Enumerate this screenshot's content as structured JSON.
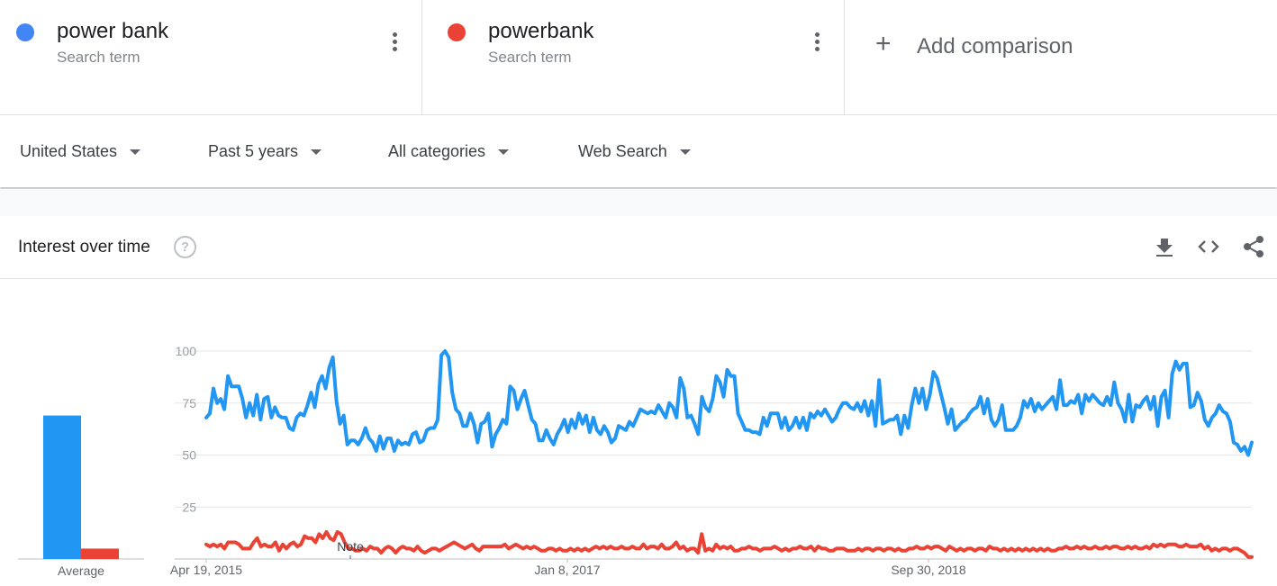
{
  "search_terms": [
    {
      "name": "power bank",
      "subtitle": "Search term",
      "color": "#4285f4"
    },
    {
      "name": "powerbank",
      "subtitle": "Search term",
      "color": "#ea4335"
    }
  ],
  "add_comparison": {
    "icon": "plus-icon",
    "label": "Add comparison"
  },
  "filters": {
    "region": "United States",
    "time_range": "Past 5 years",
    "category": "All categories",
    "search_type": "Web Search"
  },
  "widget": {
    "title": "Interest over time",
    "icons": [
      "help-icon",
      "download-icon",
      "embed-icon",
      "share-icon"
    ]
  },
  "chart_data": {
    "type": "line",
    "x_ticks": [
      "Apr 19, 2015",
      "Jan 8, 2017",
      "Sep 30, 2018"
    ],
    "y_ticks": [
      25,
      50,
      75,
      100
    ],
    "ylim": [
      0,
      100
    ],
    "grid": true,
    "annotation": "Note",
    "average": {
      "label": "Average",
      "values": [
        69,
        5
      ]
    },
    "series": [
      {
        "name": "power bank",
        "color": "#2196f3",
        "values": [
          68,
          70,
          82,
          75,
          77,
          72,
          88,
          83,
          83,
          83,
          77,
          68,
          75,
          69,
          79,
          67,
          77,
          78,
          68,
          73,
          69,
          68,
          68,
          63,
          62,
          68,
          70,
          69,
          74,
          80,
          73,
          84,
          88,
          82,
          92,
          97,
          76,
          65,
          69,
          55,
          57,
          57,
          55,
          58,
          63,
          58,
          56,
          52,
          59,
          53,
          58,
          58,
          52,
          57,
          55,
          56,
          55,
          60,
          61,
          56,
          57,
          62,
          63,
          63,
          67,
          98,
          100,
          97,
          80,
          72,
          70,
          64,
          64,
          70,
          65,
          56,
          65,
          66,
          70,
          54,
          60,
          63,
          67,
          65,
          83,
          81,
          72,
          77,
          81,
          74,
          67,
          65,
          57,
          57,
          62,
          58,
          55,
          60,
          63,
          67,
          61,
          67,
          63,
          70,
          65,
          69,
          61,
          68,
          62,
          60,
          64,
          61,
          56,
          58,
          64,
          63,
          62,
          66,
          64,
          68,
          72,
          71,
          70,
          71,
          70,
          74,
          71,
          68,
          75,
          73,
          68,
          87,
          82,
          68,
          69,
          65,
          60,
          78,
          73,
          71,
          77,
          88,
          85,
          78,
          91,
          88,
          88,
          70,
          66,
          62,
          62,
          61,
          61,
          60,
          68,
          64,
          70,
          70,
          70,
          63,
          68,
          62,
          64,
          68,
          63,
          68,
          62,
          70,
          68,
          71,
          69,
          72,
          69,
          66,
          68,
          72,
          75,
          75,
          73,
          72,
          75,
          71,
          76,
          69,
          76,
          64,
          86,
          65,
          66,
          67,
          67,
          69,
          60,
          69,
          63,
          74,
          82,
          75,
          82,
          72,
          79,
          90,
          87,
          80,
          73,
          65,
          72,
          62,
          64,
          66,
          67,
          70,
          72,
          73,
          78,
          70,
          77,
          67,
          64,
          67,
          74,
          62,
          62,
          62,
          64,
          68,
          76,
          73,
          77,
          71,
          75,
          72,
          74,
          76,
          78,
          72,
          86,
          74,
          74,
          76,
          75,
          79,
          70,
          79,
          76,
          79,
          77,
          75,
          74,
          78,
          74,
          85,
          75,
          72,
          66,
          79,
          66,
          74,
          73,
          76,
          78,
          72,
          78,
          64,
          78,
          81,
          68,
          89,
          95,
          91,
          94,
          94,
          73,
          74,
          80,
          76,
          67,
          64,
          68,
          70,
          74,
          71,
          70,
          66,
          56,
          55,
          52,
          54,
          50,
          56
        ]
      },
      {
        "name": "powerbank",
        "color": "#ea4335",
        "values": [
          7,
          6,
          7,
          6,
          7,
          5,
          8,
          8,
          8,
          7,
          5,
          5,
          5,
          8,
          10,
          6,
          7,
          6,
          6,
          8,
          4,
          7,
          5,
          7,
          8,
          6,
          7,
          11,
          10,
          10,
          8,
          12,
          10,
          13,
          10,
          9,
          13,
          12,
          8,
          5,
          5,
          4,
          4,
          5,
          4,
          6,
          5,
          5,
          3,
          5,
          6,
          5,
          3,
          5,
          6,
          5,
          5,
          4,
          6,
          4,
          3,
          4,
          5,
          5,
          4,
          5,
          6,
          7,
          8,
          7,
          6,
          5,
          6,
          7,
          5,
          4,
          6,
          6,
          6,
          6,
          6,
          6,
          7,
          5,
          6,
          7,
          6,
          5,
          6,
          5,
          6,
          5,
          4,
          4,
          5,
          5,
          4,
          5,
          4,
          4,
          5,
          4,
          5,
          4,
          5,
          4,
          5,
          6,
          5,
          6,
          5,
          6,
          5,
          5,
          6,
          5,
          5,
          6,
          5,
          5,
          7,
          5,
          6,
          6,
          5,
          7,
          5,
          5,
          6,
          8,
          5,
          6,
          4,
          5,
          5,
          3,
          12,
          4,
          5,
          4,
          7,
          5,
          6,
          5,
          6,
          4,
          4,
          5,
          5,
          6,
          5,
          5,
          4,
          5,
          5,
          5,
          6,
          5,
          4,
          5,
          4,
          5,
          5,
          6,
          5,
          5,
          6,
          4,
          6,
          5,
          5,
          4,
          4,
          5,
          5,
          5,
          4,
          4,
          4,
          5,
          4,
          5,
          5,
          4,
          5,
          5,
          4,
          5,
          5,
          4,
          5,
          4,
          4,
          5,
          5,
          6,
          5,
          5,
          6,
          5,
          6,
          6,
          5,
          4,
          6,
          5,
          4,
          5,
          4,
          5,
          5,
          4,
          5,
          5,
          4,
          6,
          5,
          5,
          4,
          5,
          4,
          5,
          4,
          5,
          4,
          5,
          4,
          5,
          4,
          5,
          4,
          5,
          4,
          4,
          5,
          5,
          6,
          5,
          5,
          6,
          5,
          6,
          5,
          5,
          6,
          5,
          5,
          6,
          5,
          6,
          6,
          5,
          5,
          6,
          5,
          6,
          5,
          5,
          6,
          5,
          7,
          6,
          7,
          6,
          7,
          7,
          7,
          6,
          6,
          7,
          6,
          6,
          6,
          7,
          5,
          6,
          4,
          5,
          4,
          5,
          5,
          4,
          5,
          5,
          4,
          3,
          1,
          1
        ]
      }
    ]
  }
}
